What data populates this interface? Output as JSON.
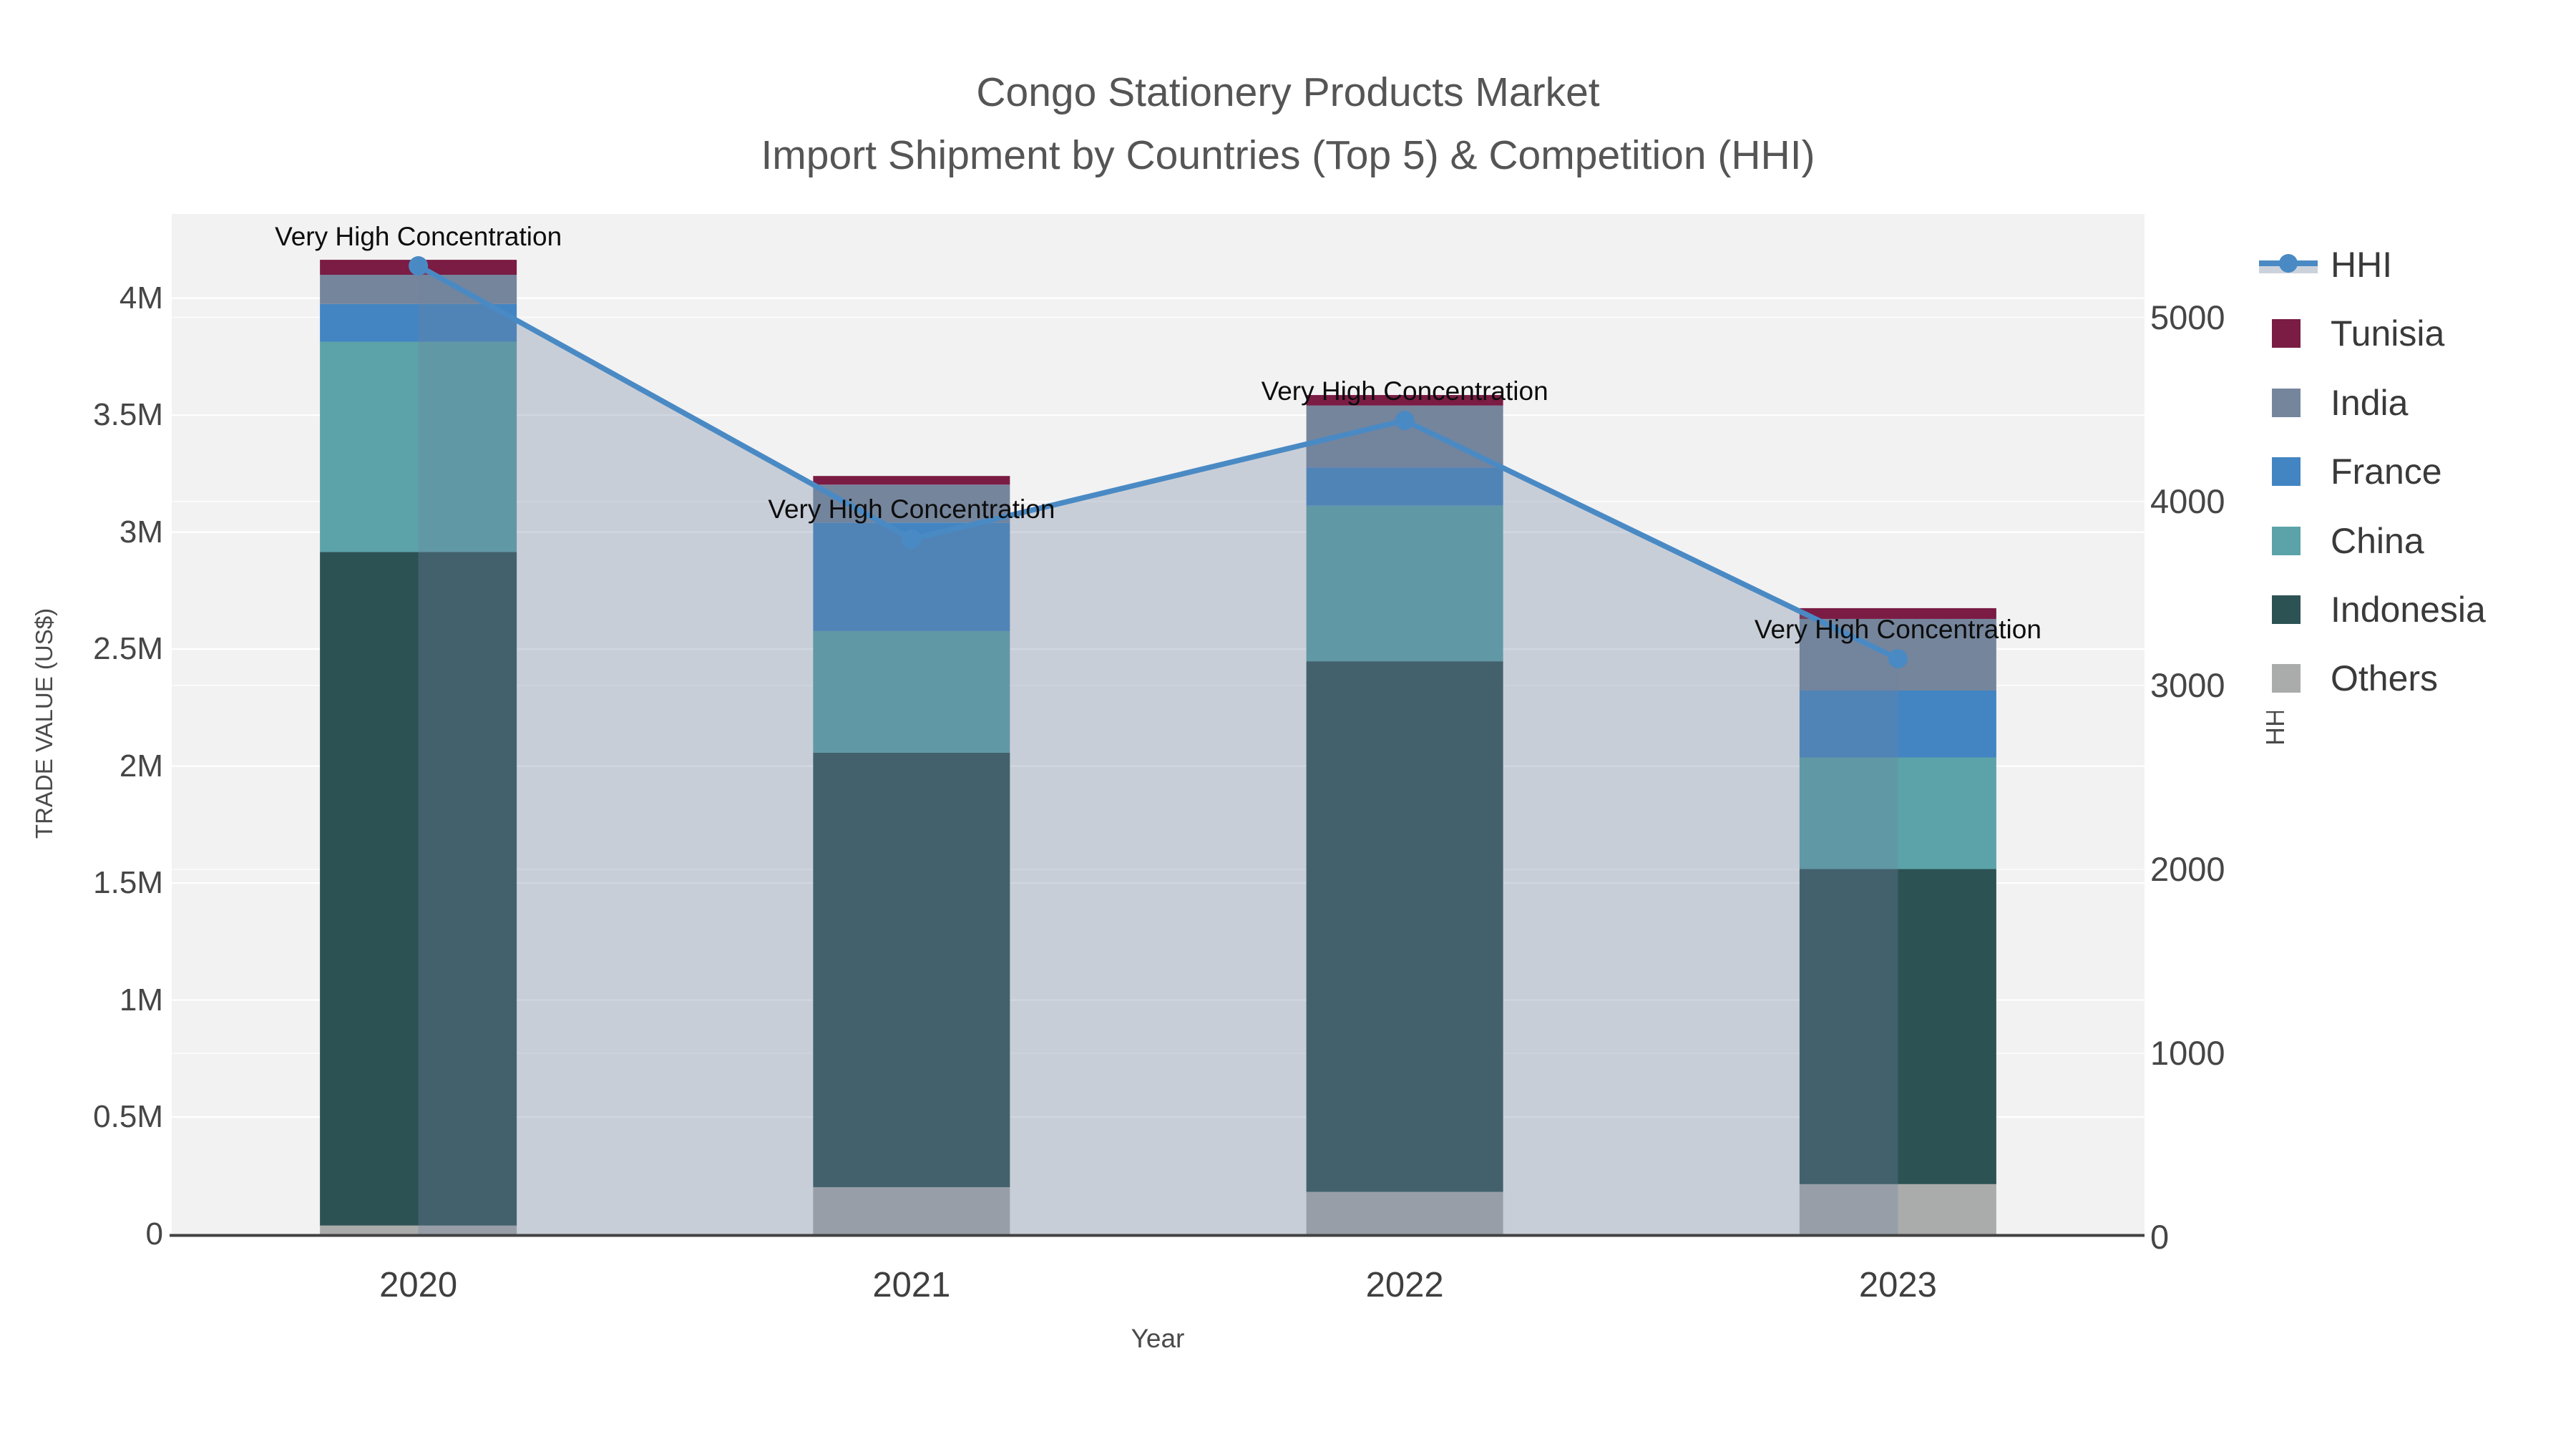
{
  "title": {
    "line1": "Congo Stationery Products Market",
    "line2": "Import Shipment by Countries (Top 5) & Competition (HHI)"
  },
  "axes": {
    "x": {
      "title": "Year",
      "categories": [
        "2020",
        "2021",
        "2022",
        "2023"
      ]
    },
    "left": {
      "title": "TRADE VALUE (US$)",
      "ticks": [
        {
          "label": "0",
          "value": 0
        },
        {
          "label": "0.5M",
          "value": 0.5
        },
        {
          "label": "1M",
          "value": 1
        },
        {
          "label": "1.5M",
          "value": 1.5
        },
        {
          "label": "2M",
          "value": 2
        },
        {
          "label": "2.5M",
          "value": 2.5
        },
        {
          "label": "3M",
          "value": 3
        },
        {
          "label": "3.5M",
          "value": 3.5
        },
        {
          "label": "4M",
          "value": 4
        }
      ]
    },
    "right": {
      "title": "HHI",
      "ticks": [
        {
          "label": "0",
          "value": 0
        },
        {
          "label": "1000",
          "value": 1000
        },
        {
          "label": "2000",
          "value": 2000
        },
        {
          "label": "3000",
          "value": 3000
        },
        {
          "label": "4000",
          "value": 4000
        },
        {
          "label": "5000",
          "value": 5000
        }
      ]
    }
  },
  "legend": {
    "items": [
      {
        "label": "HHI",
        "color": "#4a8ac4",
        "kind": "line-area"
      },
      {
        "label": "Tunisia",
        "color": "#7a1c44",
        "kind": "square"
      },
      {
        "label": "India",
        "color": "#75859c",
        "kind": "square"
      },
      {
        "label": "France",
        "color": "#4285c2",
        "kind": "square"
      },
      {
        "label": "China",
        "color": "#5ba3a9",
        "kind": "square"
      },
      {
        "label": "Indonesia",
        "color": "#2d5254",
        "kind": "square"
      },
      {
        "label": "Others",
        "color": "#aaacab",
        "kind": "square"
      }
    ]
  },
  "annotations": {
    "text": "Very High Concentration",
    "years": [
      "2020",
      "2021",
      "2022",
      "2023"
    ]
  },
  "chart_data": {
    "type": "bar",
    "subtype": "stacked-bars-with-line-area",
    "categories": [
      "2020",
      "2021",
      "2022",
      "2023"
    ],
    "unit": "US$ millions",
    "stack_order": [
      "Others",
      "Indonesia",
      "China",
      "France",
      "India",
      "Tunisia"
    ],
    "series": [
      {
        "name": "Tunisia",
        "color": "#7a1c44",
        "values": [
          0.064,
          0.037,
          0.045,
          0.046
        ]
      },
      {
        "name": "India",
        "color": "#75859c",
        "values": [
          0.125,
          0.162,
          0.265,
          0.306
        ]
      },
      {
        "name": "France",
        "color": "#4285c2",
        "values": [
          0.161,
          0.464,
          0.163,
          0.286
        ]
      },
      {
        "name": "China",
        "color": "#5ba3a9",
        "values": [
          0.899,
          0.52,
          0.665,
          0.477
        ]
      },
      {
        "name": "Indonesia",
        "color": "#2d5254",
        "values": [
          2.879,
          1.857,
          2.268,
          1.347
        ]
      },
      {
        "name": "Others",
        "color": "#aaacab",
        "values": [
          0.036,
          0.2,
          0.18,
          0.213
        ]
      }
    ],
    "totals": [
      4.164,
      3.24,
      3.586,
      2.675
    ],
    "line_series": {
      "name": "HHI",
      "axis": "right",
      "color": "#4a8ac4",
      "area_fill": "rgba(112,130,160,0.32)",
      "values": [
        5280,
        3795,
        4440,
        3145
      ]
    },
    "title": "Congo Stationery Products Market — Import Shipment by Countries (Top 5) & Competition (HHI)",
    "xlabel": "Year",
    "ylabel": "TRADE VALUE (US$)",
    "ylabel2": "HHI",
    "ylim_left": [
      0,
      4.36
    ],
    "ylim_right": [
      0,
      5560
    ],
    "grid": true,
    "legend_position": "right"
  },
  "colors": {
    "plot_bg": "#f2f2f3",
    "grid": "#ffffff",
    "axis_line": "#424242",
    "tick_text": "#464646",
    "title_text": "#555555",
    "annotation_text": "#0d0d0d"
  }
}
